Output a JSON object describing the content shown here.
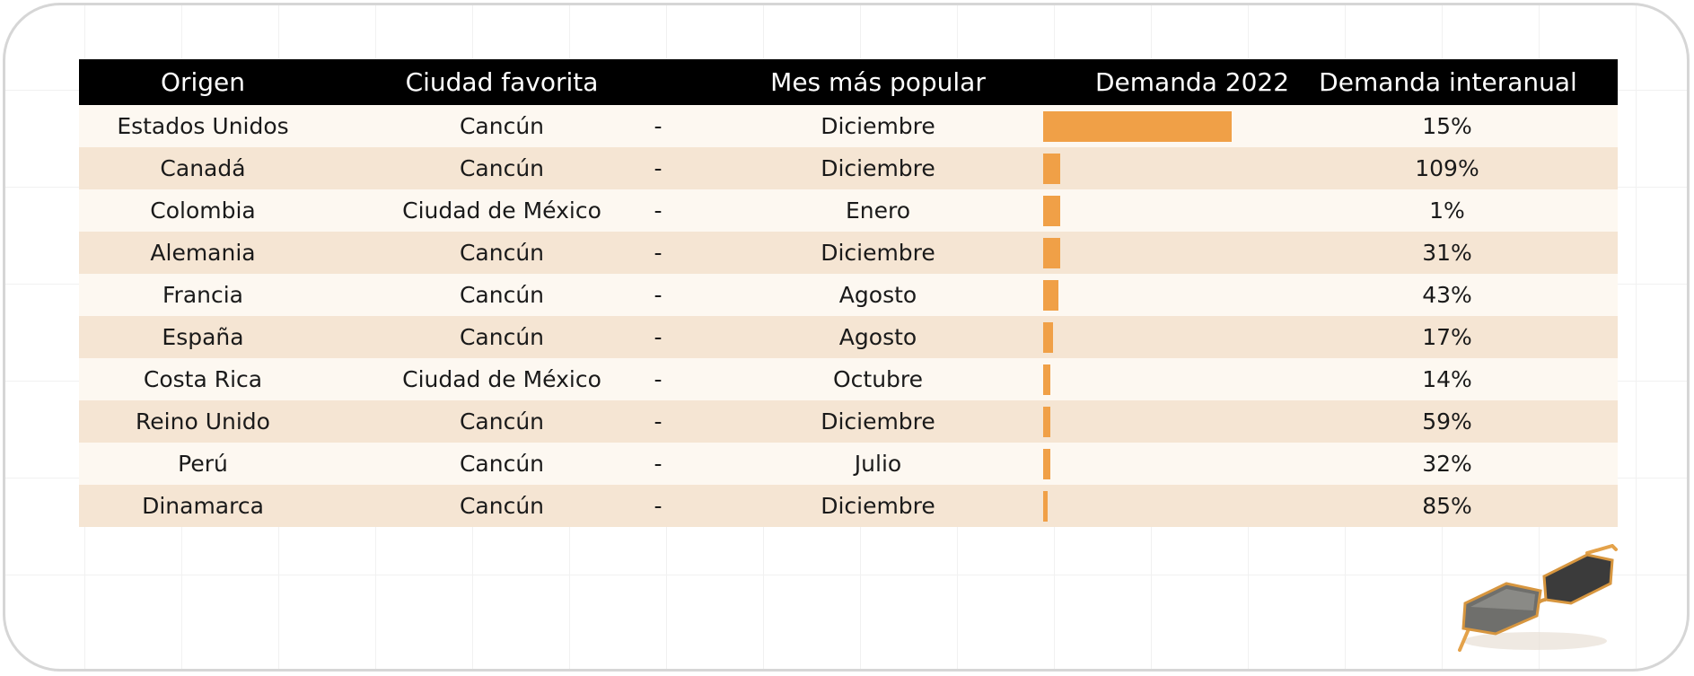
{
  "table": {
    "headers": {
      "origin": "Origen",
      "city": "Ciudad favorita",
      "month": "Mes más popular",
      "demand": "Demanda 2022",
      "yoy": "Demanda interanual"
    },
    "dash": "-",
    "rows": [
      {
        "origin": "Estados Unidos",
        "city": "Cancún",
        "month": "Diciembre",
        "demand": 1.0,
        "yoy": "15%"
      },
      {
        "origin": "Canadá",
        "city": "Cancún",
        "month": "Diciembre",
        "demand": 0.09,
        "yoy": "109%"
      },
      {
        "origin": "Colombia",
        "city": "Ciudad de México",
        "month": "Enero",
        "demand": 0.09,
        "yoy": "1%"
      },
      {
        "origin": "Alemania",
        "city": "Cancún",
        "month": "Diciembre",
        "demand": 0.09,
        "yoy": "31%"
      },
      {
        "origin": "Francia",
        "city": "Cancún",
        "month": "Agosto",
        "demand": 0.08,
        "yoy": "43%"
      },
      {
        "origin": "España",
        "city": "Cancún",
        "month": "Agosto",
        "demand": 0.05,
        "yoy": "17%"
      },
      {
        "origin": "Costa Rica",
        "city": "Ciudad de México",
        "month": "Octubre",
        "demand": 0.04,
        "yoy": "14%"
      },
      {
        "origin": "Reino Unido",
        "city": "Cancún",
        "month": "Diciembre",
        "demand": 0.04,
        "yoy": "59%"
      },
      {
        "origin": "Perú",
        "city": "Cancún",
        "month": "Julio",
        "demand": 0.04,
        "yoy": "32%"
      },
      {
        "origin": "Dinamarca",
        "city": "Cancún",
        "month": "Diciembre",
        "demand": 0.02,
        "yoy": "85%"
      }
    ]
  },
  "colors": {
    "header_bg": "#000000",
    "row_light": "#fdf8f1",
    "row_dark": "#f5e5d3",
    "bar": "#f0a047"
  },
  "decoration": {
    "icon": "sunglasses-icon"
  }
}
